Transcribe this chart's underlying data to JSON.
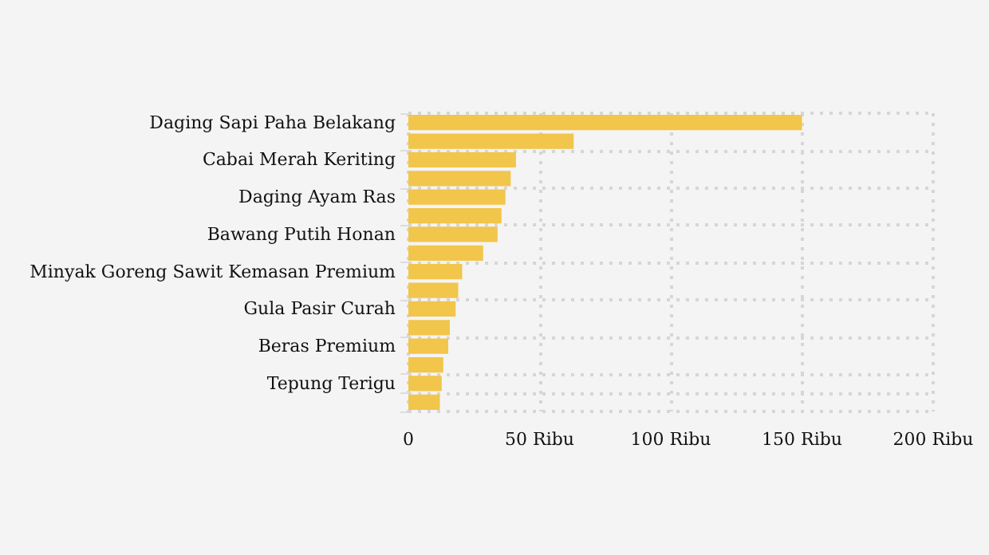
{
  "chart_data": {
    "type": "bar",
    "orientation": "horizontal",
    "categories": [
      "Daging Sapi Paha Belakang",
      null,
      "Cabai Merah Keriting",
      null,
      "Daging Ayam Ras",
      null,
      "Bawang Putih Honan",
      null,
      "Minyak Goreng Sawit Kemasan Premium",
      null,
      "Gula Pasir Curah",
      null,
      "Beras Premium",
      null,
      "Tepung Terigu",
      null
    ],
    "values": [
      150,
      63,
      41,
      39,
      37,
      35.5,
      34,
      28.5,
      20.5,
      19,
      18,
      15.8,
      15.2,
      13.3,
      12.7,
      12
    ],
    "color": "#f2c54b",
    "xlim": [
      0,
      200
    ],
    "xticks": [
      0,
      {
        "value": 50,
        "label": "50 Ribu"
      },
      {
        "value": 100,
        "label": "100 Ribu"
      },
      {
        "value": 150,
        "label": "150 Ribu"
      },
      {
        "value": 200,
        "label": "200 Ribu"
      }
    ],
    "grid": true
  }
}
